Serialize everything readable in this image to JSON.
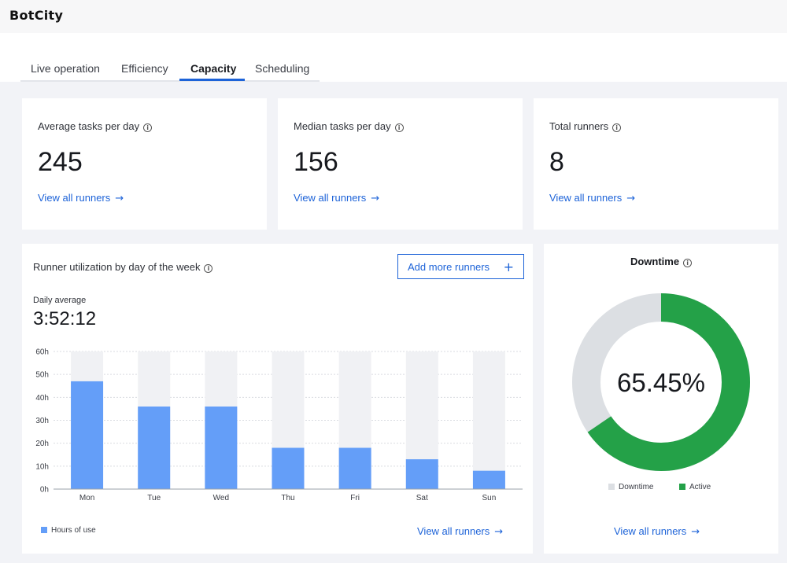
{
  "app": {
    "logo": "BotCity"
  },
  "tabs": [
    {
      "label": "Live operation"
    },
    {
      "label": "Efficiency"
    },
    {
      "label": "Capacity"
    },
    {
      "label": "Scheduling"
    }
  ],
  "kpis": [
    {
      "label": "Average tasks per day",
      "value": "245",
      "link": "View all runners"
    },
    {
      "label": "Median tasks per day",
      "value": "156",
      "link": "View all runners"
    },
    {
      "label": "Total runners",
      "value": "8",
      "link": "View all runners"
    }
  ],
  "utilization": {
    "title": "Runner utilization by day of the week",
    "add_button": "Add more runners",
    "daily_label": "Daily average",
    "daily_value": "3:52:12",
    "legend": "Hours of use",
    "link": "View all runners"
  },
  "chart_data": {
    "type": "bar",
    "categories": [
      "Mon",
      "Tue",
      "Wed",
      "Thu",
      "Fri",
      "Sat",
      "Sun"
    ],
    "series": [
      {
        "name": "Hours of use",
        "values": [
          47,
          36,
          36,
          18,
          18,
          13,
          8
        ]
      }
    ],
    "ylim": [
      0,
      60
    ],
    "yticks": [
      0,
      10,
      20,
      30,
      40,
      50,
      60
    ],
    "ytick_labels": [
      "0h",
      "10h",
      "20h",
      "30h",
      "40h",
      "50h",
      "60h"
    ],
    "colors": {
      "bar": "#649ef8",
      "track": "#f0f1f4",
      "grid": "#d9dbe0"
    }
  },
  "downtime": {
    "title": "Downtime",
    "center_text": "65.45%",
    "active_fraction": 0.6545,
    "legend": [
      {
        "label": "Downtime",
        "color": "#dcdfe3"
      },
      {
        "label": "Active",
        "color": "#24a148"
      }
    ],
    "link": "View all runners"
  }
}
